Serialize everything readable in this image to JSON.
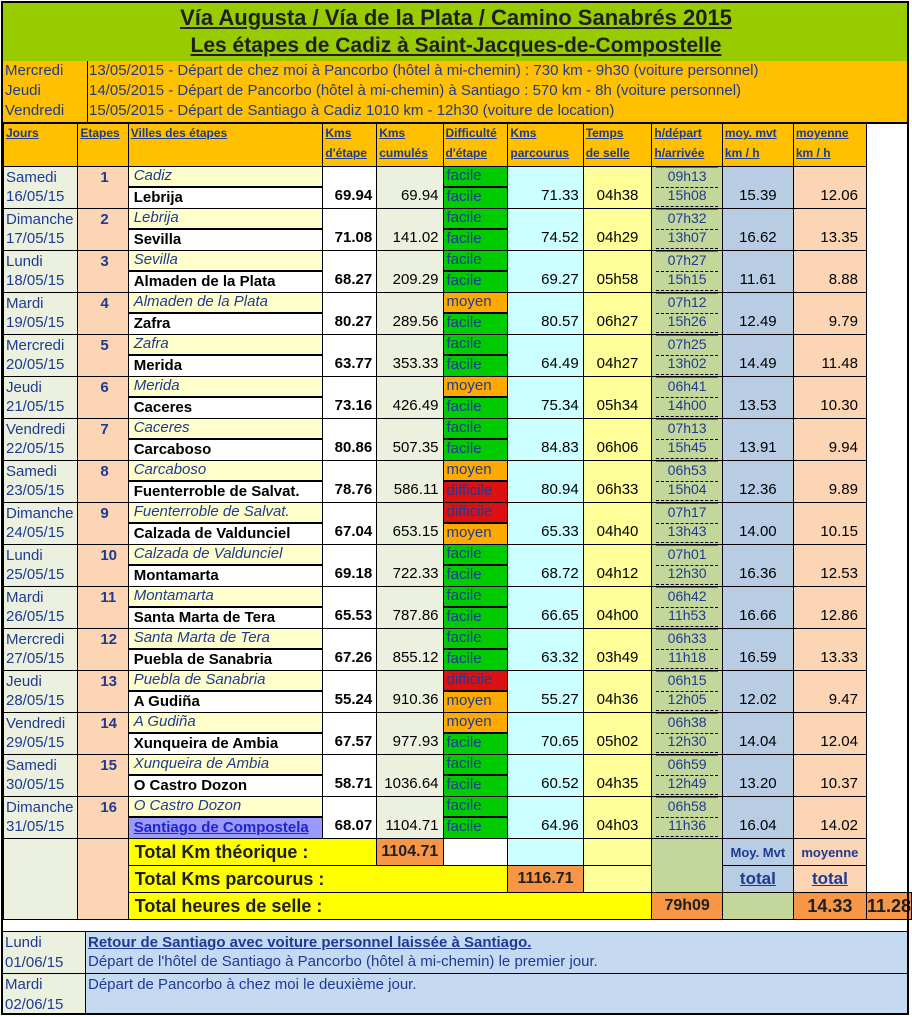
{
  "title": {
    "line1": "Vía Augusta / Vía de la Plata / Camino Sanabrés 2015",
    "line2": "Les étapes de Cadiz à Saint-Jacques-de-Compostelle"
  },
  "departures": [
    {
      "day": "Mercredi",
      "text": "13/05/2015 - Départ de chez moi à Pancorbo (hôtel à mi-chemin) : 730 km - 9h30 (voiture personnel)"
    },
    {
      "day": "Jeudi",
      "text": "14/05/2015 - Départ de Pancorbo (hôtel à mi-chemin) à Santiago : 570 km - 8h (voiture personnel)"
    },
    {
      "day": "Vendredi",
      "text": "15/05/2015 - Départ de Santiago à Cadiz 1010 km - 12h30 (voiture de location)"
    }
  ],
  "headers": {
    "jours": "Jours",
    "etapes": "Etapes",
    "villes": "Villes des étapes",
    "kms_etape": [
      "Kms",
      "d'étape"
    ],
    "kms_cumules": [
      "Kms",
      "cumulés"
    ],
    "difficulte": [
      "Difficulté",
      "d'étape"
    ],
    "kms_parcourus": [
      "Kms",
      "parcourus"
    ],
    "temps_selle": [
      "Temps",
      "de selle"
    ],
    "heures": [
      "h/départ",
      "h/arrivée"
    ],
    "moy_mvt": [
      "moy. mvt",
      "km / h"
    ],
    "moyenne": [
      "moyenne",
      "km / h"
    ]
  },
  "stages": [
    {
      "day": "Samedi",
      "date": "16/05/15",
      "n": "1",
      "from": "Cadiz",
      "to": "Lebrija",
      "km": "69.94",
      "cum": "69.94",
      "diff": [
        "facile",
        "facile"
      ],
      "parc": "71.33",
      "selle": "04h38",
      "dep": "09h13",
      "arr": "15h08",
      "mvt": "15.39",
      "moy": "12.06"
    },
    {
      "day": "Dimanche",
      "date": "17/05/15",
      "n": "2",
      "from": "Lebrija",
      "to": "Sevilla",
      "km": "71.08",
      "cum": "141.02",
      "diff": [
        "facile",
        "facile"
      ],
      "parc": "74.52",
      "selle": "04h29",
      "dep": "07h32",
      "arr": "13h07",
      "mvt": "16.62",
      "moy": "13.35"
    },
    {
      "day": "Lundi",
      "date": "18/05/15",
      "n": "3",
      "from": "Sevilla",
      "to": "Almaden de la Plata",
      "km": "68.27",
      "cum": "209.29",
      "diff": [
        "facile",
        "facile"
      ],
      "parc": "69.27",
      "selle": "05h58",
      "dep": "07h27",
      "arr": "15h15",
      "mvt": "11.61",
      "moy": "8.88"
    },
    {
      "day": "Mardi",
      "date": "19/05/15",
      "n": "4",
      "from": "Almaden de la Plata",
      "to": "Zafra",
      "km": "80.27",
      "cum": "289.56",
      "diff": [
        "moyen",
        "facile"
      ],
      "parc": "80.57",
      "selle": "06h27",
      "dep": "07h12",
      "arr": "15h26",
      "mvt": "12.49",
      "moy": "9.79"
    },
    {
      "day": "Mercredi",
      "date": "20/05/15",
      "n": "5",
      "from": "Zafra",
      "to": "Merida",
      "km": "63.77",
      "cum": "353.33",
      "diff": [
        "facile",
        "facile"
      ],
      "parc": "64.49",
      "selle": "04h27",
      "dep": "07h25",
      "arr": "13h02",
      "mvt": "14.49",
      "moy": "11.48"
    },
    {
      "day": "Jeudi",
      "date": "21/05/15",
      "n": "6",
      "from": "Merida",
      "to": "Caceres",
      "km": "73.16",
      "cum": "426.49",
      "diff": [
        "moyen",
        "facile"
      ],
      "parc": "75.34",
      "selle": "05h34",
      "dep": "06h41",
      "arr": "14h00",
      "mvt": "13.53",
      "moy": "10.30"
    },
    {
      "day": "Vendredi",
      "date": "22/05/15",
      "n": "7",
      "from": "Caceres",
      "to": "Carcaboso",
      "km": "80.86",
      "cum": "507.35",
      "diff": [
        "facile",
        "facile"
      ],
      "parc": "84.83",
      "selle": "06h06",
      "dep": "07h13",
      "arr": "15h45",
      "mvt": "13.91",
      "moy": "9.94"
    },
    {
      "day": "Samedi",
      "date": "23/05/15",
      "n": "8",
      "from": "Carcaboso",
      "to": "Fuenterroble de Salvat.",
      "km": "78.76",
      "cum": "586.11",
      "diff": [
        "moyen",
        "difficile"
      ],
      "parc": "80.94",
      "selle": "06h33",
      "dep": "06h53",
      "arr": "15h04",
      "mvt": "12.36",
      "moy": "9.89"
    },
    {
      "day": "Dimanche",
      "date": "24/05/15",
      "n": "9",
      "from": "Fuenterroble de Salvat.",
      "to": "Calzada de Valdunciel",
      "km": "67.04",
      "cum": "653.15",
      "diff": [
        "difficile",
        "moyen"
      ],
      "parc": "65.33",
      "selle": "04h40",
      "dep": "07h17",
      "arr": "13h43",
      "mvt": "14.00",
      "moy": "10.15"
    },
    {
      "day": "Lundi",
      "date": "25/05/15",
      "n": "10",
      "from": "Calzada de Valdunciel",
      "to": "Montamarta",
      "km": "69.18",
      "cum": "722.33",
      "diff": [
        "facile",
        "facile"
      ],
      "parc": "68.72",
      "selle": "04h12",
      "dep": "07h01",
      "arr": "12h30",
      "mvt": "16.36",
      "moy": "12.53"
    },
    {
      "day": "Mardi",
      "date": "26/05/15",
      "n": "11",
      "from": "Montamarta",
      "to": "Santa Marta de Tera",
      "km": "65.53",
      "cum": "787.86",
      "diff": [
        "facile",
        "facile"
      ],
      "parc": "66.65",
      "selle": "04h00",
      "dep": "06h42",
      "arr": "11h53",
      "mvt": "16.66",
      "moy": "12.86"
    },
    {
      "day": "Mercredi",
      "date": "27/05/15",
      "n": "12",
      "from": "Santa Marta de Tera",
      "to": "Puebla de Sanabria",
      "km": "67.26",
      "cum": "855.12",
      "diff": [
        "facile",
        "facile"
      ],
      "parc": "63.32",
      "selle": "03h49",
      "dep": "06h33",
      "arr": "11h18",
      "mvt": "16.59",
      "moy": "13.33"
    },
    {
      "day": "Jeudi",
      "date": "28/05/15",
      "n": "13",
      "from": "Puebla de Sanabria",
      "to": "A Gudiña",
      "km": "55.24",
      "cum": "910.36",
      "diff": [
        "difficile",
        "moyen"
      ],
      "parc": "55.27",
      "selle": "04h36",
      "dep": "06h15",
      "arr": "12h05",
      "mvt": "12.02",
      "moy": "9.47"
    },
    {
      "day": "Vendredi",
      "date": "29/05/15",
      "n": "14",
      "from": "A Gudiña",
      "to": "Xunqueira de Ambia",
      "km": "67.57",
      "cum": "977.93",
      "diff": [
        "moyen",
        "facile"
      ],
      "parc": "70.65",
      "selle": "05h02",
      "dep": "06h38",
      "arr": "12h30",
      "mvt": "14.04",
      "moy": "12.04"
    },
    {
      "day": "Samedi",
      "date": "30/05/15",
      "n": "15",
      "from": "Xunqueira de Ambia",
      "to": "O Castro Dozon",
      "km": "58.71",
      "cum": "1036.64",
      "diff": [
        "facile",
        "facile"
      ],
      "parc": "60.52",
      "selle": "04h35",
      "dep": "06h59",
      "arr": "12h49",
      "mvt": "13.20",
      "moy": "10.37"
    },
    {
      "day": "Dimanche",
      "date": "31/05/15",
      "n": "16",
      "from": "O Castro Dozon",
      "to": "Santiago de Compostela",
      "km": "68.07",
      "cum": "1104.71",
      "diff": [
        "facile",
        "facile"
      ],
      "parc": "64.96",
      "selle": "04h03",
      "dep": "06h58",
      "arr": "11h36",
      "mvt": "16.04",
      "moy": "14.02"
    }
  ],
  "totals": {
    "km_theorique_label": "Total Km théorique :",
    "km_theorique": "1104.71",
    "kms_parcourus_label": "Total Kms parcourus :",
    "kms_parcourus": "1116.71",
    "heures_selle_label": "Total heures de selle :",
    "heures_selle": "79h09",
    "moy_mvt_label": "Moy. Mvt",
    "moyenne_label": "moyenne",
    "total_word": "total",
    "moy_mvt_total": "14.33",
    "moyenne_total": "11.28"
  },
  "return": [
    {
      "day": "Lundi",
      "date": "01/06/15",
      "line1": "Retour de Santiago avec voiture personnel laissée à Santiago.",
      "line2": "Départ de l'hôtel de Santiago à Pancorbo (hôtel à mi-chemin) le premier jour."
    },
    {
      "day": "Mardi",
      "date": "02/06/15",
      "line1": "Départ  de Pancorbo à chez moi le deuxième jour."
    }
  ],
  "colors": {
    "facile": "#00cc00",
    "moyen": "#ffaa00",
    "difficile": "#dd1111",
    "title_band": "#99cc00",
    "header_band": "#ffc000"
  }
}
